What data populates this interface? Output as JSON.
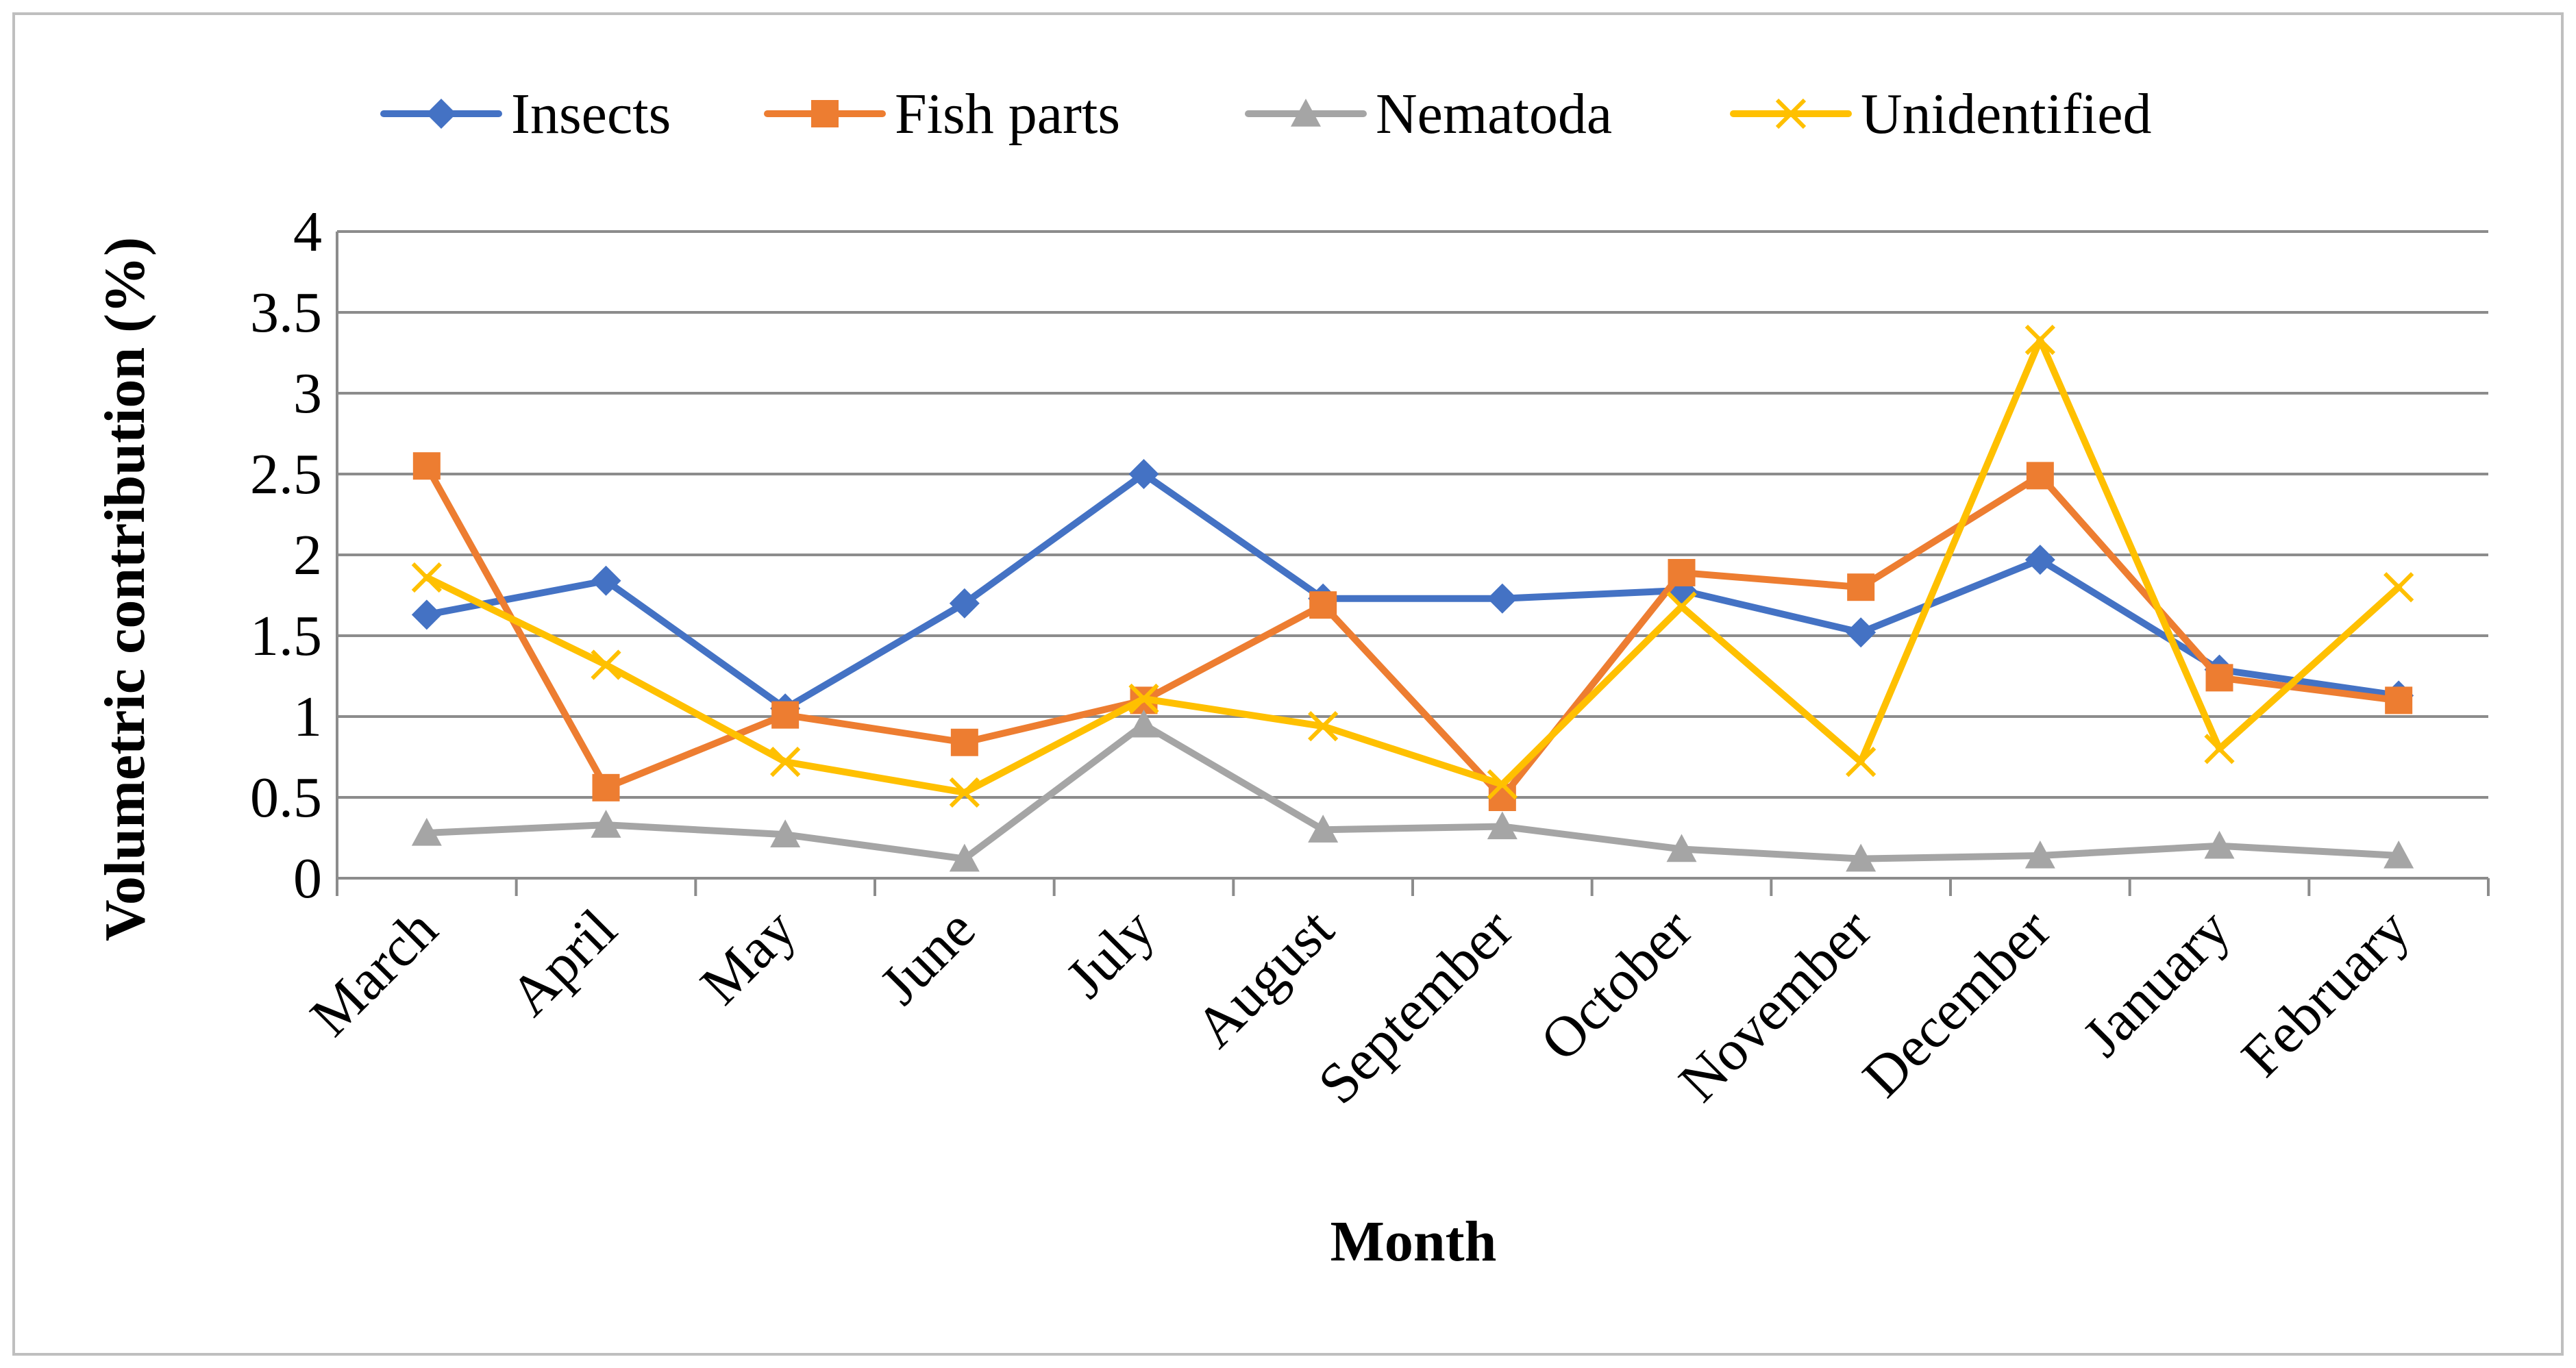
{
  "chart_data": {
    "type": "line",
    "title": "",
    "xlabel": "Month",
    "ylabel": "Volumetric contribution (%)",
    "ylim": [
      0,
      4
    ],
    "yticks": [
      "0",
      "0.5",
      "1",
      "1.5",
      "2",
      "2.5",
      "3",
      "3.5",
      "4"
    ],
    "grid": true,
    "legend_position": "top",
    "categories": [
      "March",
      "April",
      "May",
      "June",
      "July",
      "August",
      "September",
      "October",
      "November",
      "December",
      "January",
      "February"
    ],
    "series": [
      {
        "name": "Insects",
        "color": "#4472C4",
        "marker": "diamond",
        "values": [
          1.63,
          1.84,
          1.05,
          1.7,
          2.5,
          1.73,
          1.73,
          1.78,
          1.52,
          1.97,
          1.29,
          1.13
        ]
      },
      {
        "name": "Fish parts",
        "color": "#ED7D31",
        "marker": "square",
        "values": [
          2.55,
          0.56,
          1.01,
          0.84,
          1.1,
          1.69,
          0.5,
          1.89,
          1.8,
          2.49,
          1.24,
          1.1
        ]
      },
      {
        "name": "Nematoda",
        "color": "#A5A5A5",
        "marker": "triangle",
        "values": [
          0.28,
          0.33,
          0.27,
          0.12,
          0.95,
          0.3,
          0.32,
          0.18,
          0.12,
          0.14,
          0.2,
          0.14
        ]
      },
      {
        "name": "Unidentified",
        "color": "#FFC000",
        "marker": "x",
        "values": [
          1.86,
          1.32,
          0.72,
          0.53,
          1.11,
          0.94,
          0.58,
          1.68,
          0.72,
          3.33,
          0.8,
          1.8
        ]
      }
    ]
  }
}
